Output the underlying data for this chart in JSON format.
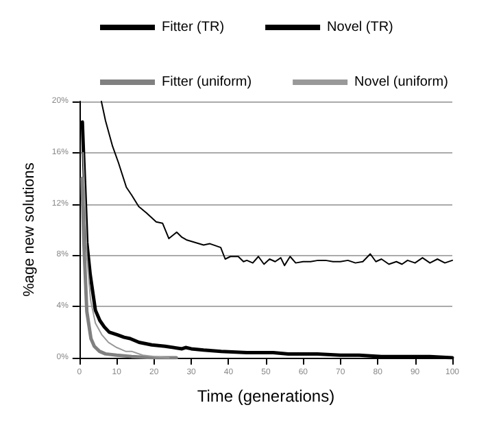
{
  "chart_data": {
    "type": "line",
    "xlabel": "Time (generations)",
    "ylabel": "%age new solutions",
    "legend": "top",
    "grid": "y",
    "marker": "none",
    "line_style": "solid",
    "xlim": [
      0,
      100
    ],
    "xticks": [
      0,
      10,
      20,
      30,
      40,
      50,
      60,
      70,
      80,
      90,
      100
    ],
    "ylim": [
      0,
      20
    ],
    "yticks": [
      {
        "value": 0,
        "label": "0%"
      },
      {
        "value": 4,
        "label": "4%"
      },
      {
        "value": 8,
        "label": "8%"
      },
      {
        "value": 12,
        "label": "12%"
      },
      {
        "value": 16,
        "label": "16%"
      },
      {
        "value": 20,
        "label": "20%"
      }
    ],
    "series": [
      {
        "name": "Fitter (TR)",
        "color": "#000000",
        "x": [
          0.8,
          2,
          2.9,
          4.3,
          5.5,
          6.7,
          8,
          10.1,
          12,
          13.6,
          16,
          19.4,
          23,
          27.5,
          28.5,
          30,
          33.3,
          38,
          44.9,
          48,
          52,
          56,
          60,
          63.8,
          70,
          75,
          81,
          88,
          94,
          100
        ],
        "values": [
          18.4,
          9,
          6.5,
          3.7,
          2.9,
          2.4,
          2,
          1.8,
          1.6,
          1.5,
          1.2,
          1,
          0.9,
          0.7,
          0.8,
          0.7,
          0.6,
          0.5,
          0.4,
          0.4,
          0.4,
          0.3,
          0.3,
          0.3,
          0.2,
          0.2,
          0.1,
          0.1,
          0.1,
          0
        ]
      },
      {
        "name": "Novel (TR)",
        "color": "#000000",
        "x": [
          5.9,
          7,
          8.9,
          10.5,
          12.6,
          14,
          15.9,
          18,
          20.6,
          22.3,
          24,
          26.1,
          27.5,
          28.7,
          31,
          33.3,
          35,
          37.9,
          39.1,
          40.5,
          42.6,
          44,
          44.9,
          46.5,
          48,
          49.5,
          51,
          52.5,
          54,
          55,
          56.5,
          58,
          60,
          62,
          64,
          66,
          68,
          70,
          72,
          74,
          76,
          78,
          79.5,
          81,
          83,
          85,
          86.5,
          88,
          90,
          92,
          94,
          96,
          98,
          100
        ],
        "values": [
          20,
          18.5,
          16.5,
          15.2,
          13.3,
          12.7,
          11.8,
          11.3,
          10.6,
          10.5,
          9.3,
          9.8,
          9.4,
          9.2,
          9,
          8.8,
          8.9,
          8.6,
          7.7,
          7.9,
          7.9,
          7.5,
          7.6,
          7.4,
          7.9,
          7.3,
          7.7,
          7.5,
          7.8,
          7.2,
          7.9,
          7.4,
          7.5,
          7.5,
          7.6,
          7.6,
          7.5,
          7.5,
          7.6,
          7.4,
          7.5,
          8.1,
          7.5,
          7.7,
          7.3,
          7.5,
          7.3,
          7.6,
          7.4,
          7.8,
          7.4,
          7.7,
          7.4,
          7.6
        ]
      },
      {
        "name": "Fitter (uniform)",
        "color": "#808080",
        "x": [
          0.7,
          1.2,
          2,
          3.1,
          4,
          5.4,
          7,
          10,
          14,
          20,
          26
        ],
        "values": [
          14,
          9,
          3.6,
          1.5,
          0.9,
          0.5,
          0.3,
          0.2,
          0.1,
          0,
          0
        ]
      },
      {
        "name": "Novel (uniform)",
        "color": "#999999",
        "x": [
          1,
          2,
          3,
          4.3,
          6,
          7.8,
          10,
          12.4,
          14,
          17,
          20,
          24
        ],
        "values": [
          16,
          8,
          4.5,
          2.7,
          1.8,
          1.2,
          0.8,
          0.5,
          0.5,
          0.2,
          0.1,
          0
        ]
      }
    ]
  }
}
